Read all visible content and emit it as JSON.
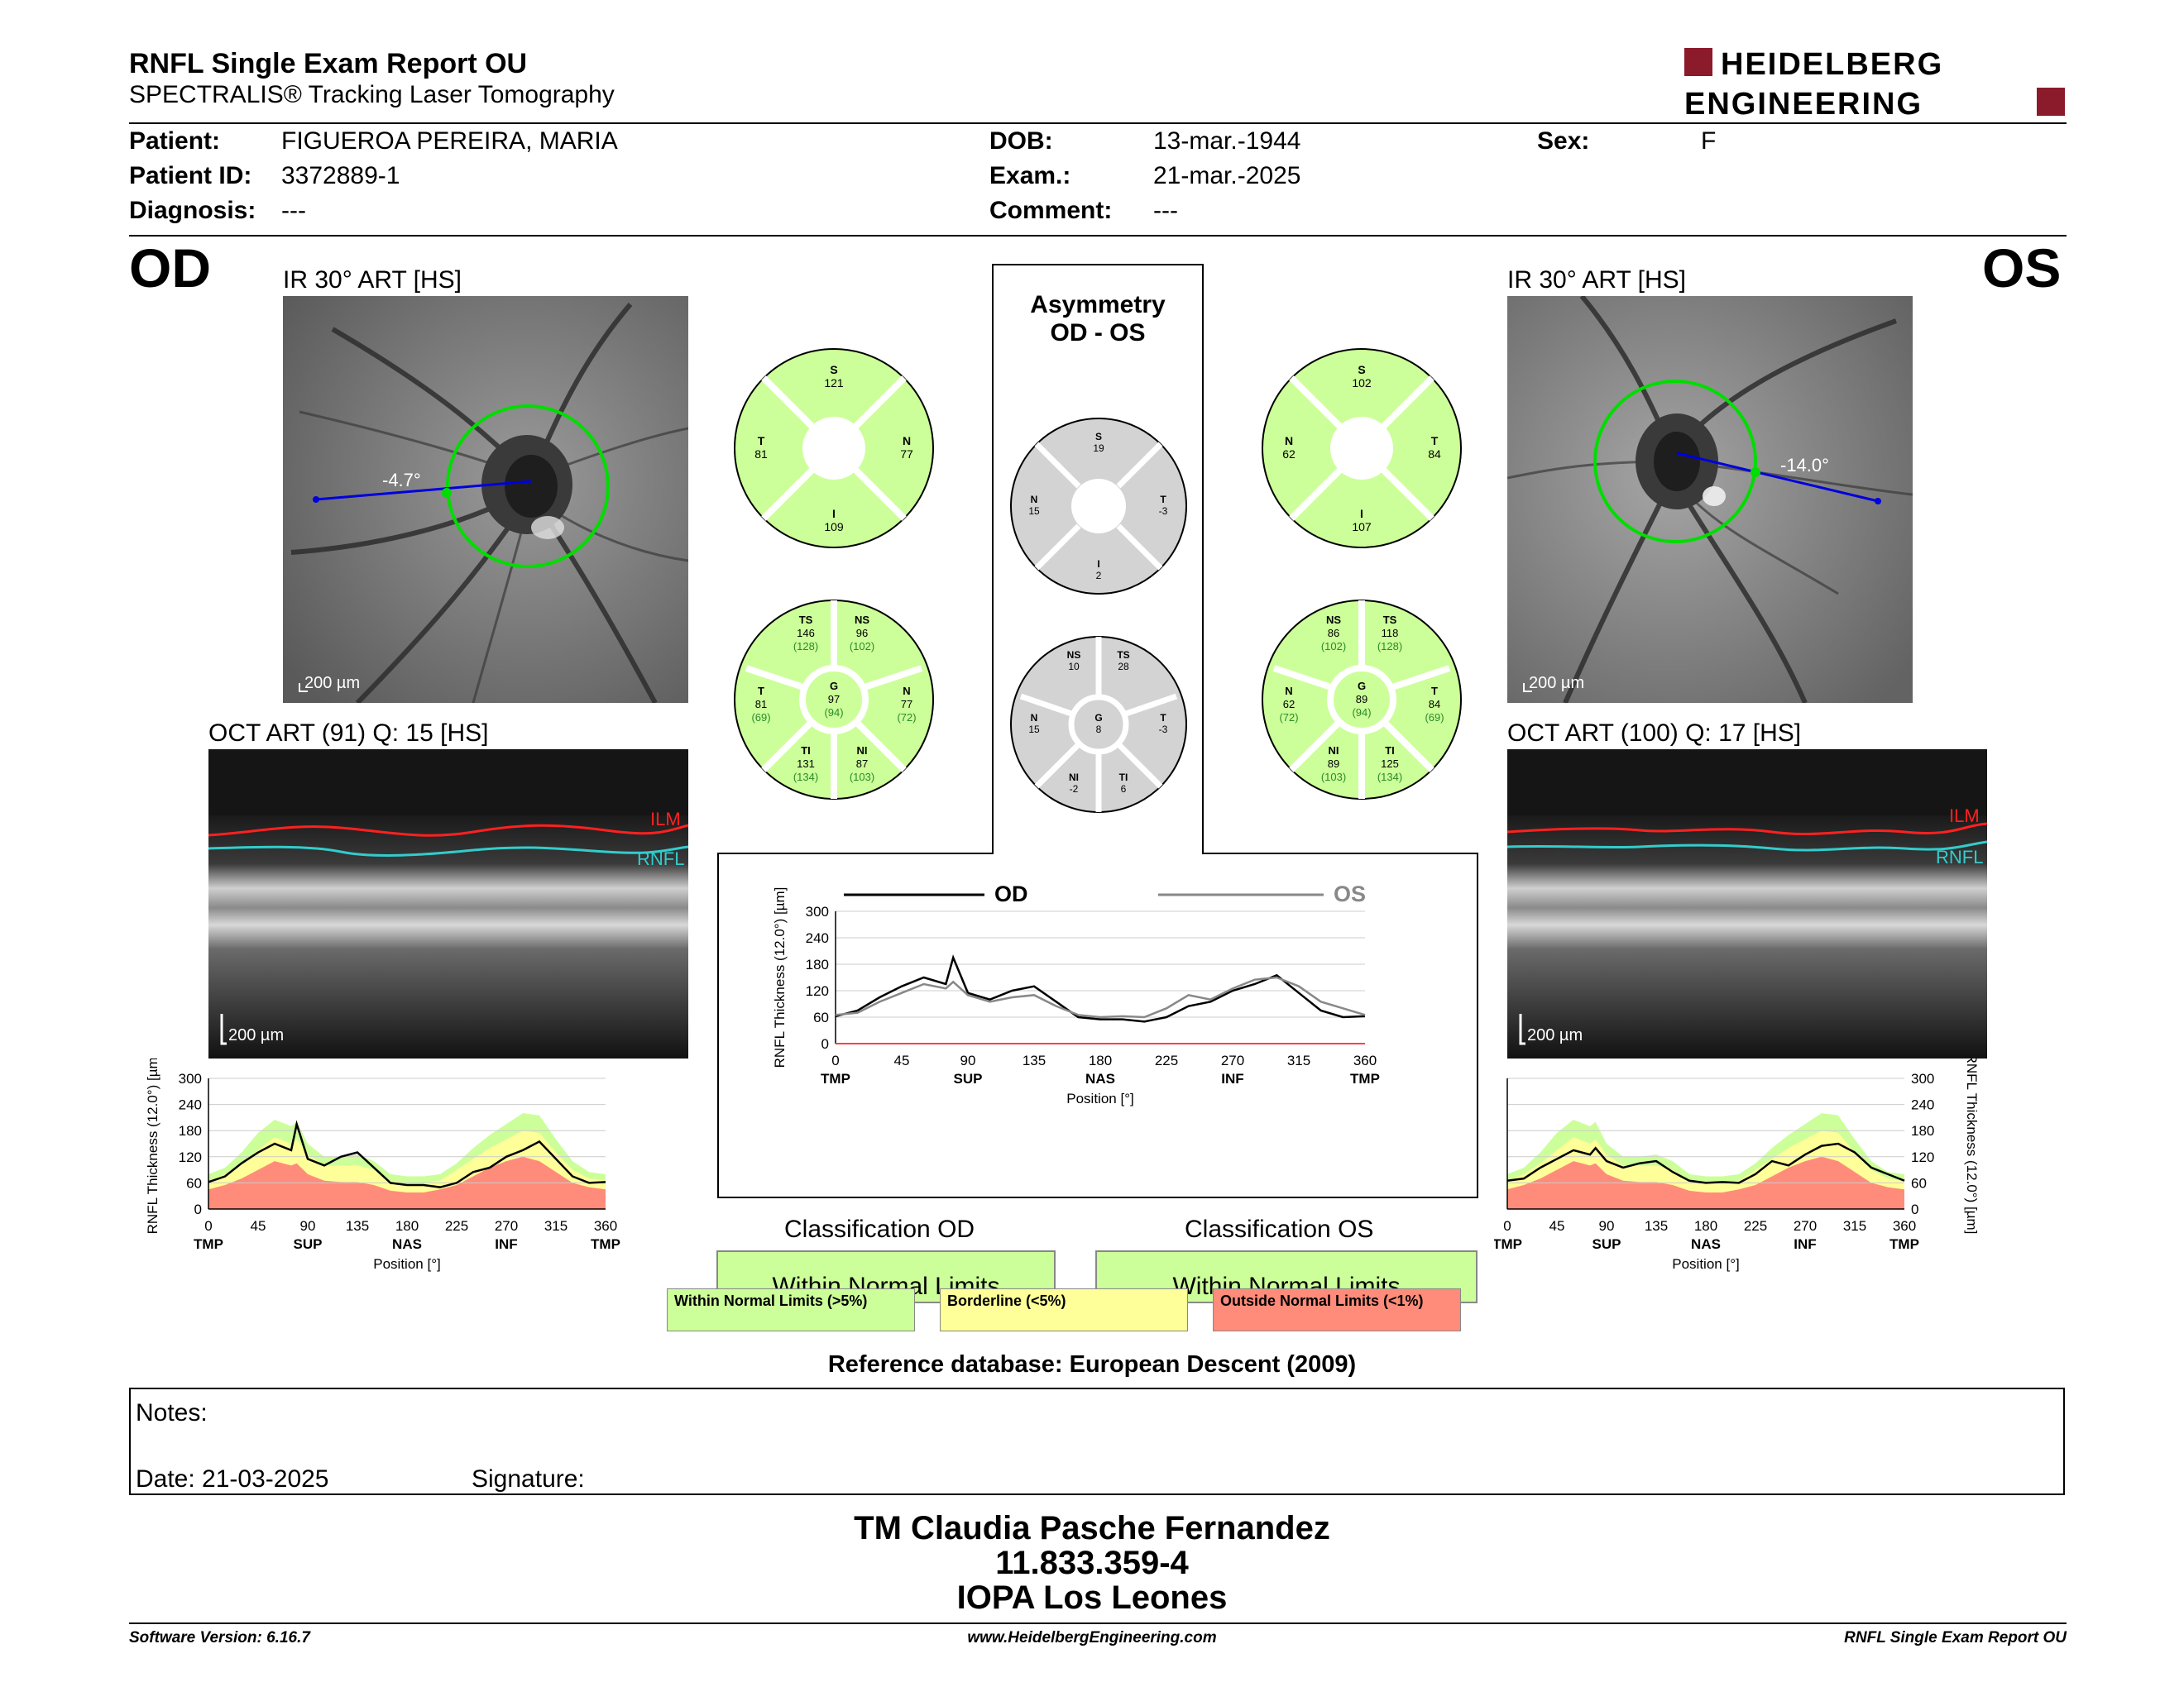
{
  "header": {
    "title": "RNFL Single Exam Report OU",
    "subtitle": "SPECTRALIS® Tracking Laser Tomography",
    "logo_line1": "HEIDELBERG",
    "logo_line2": "ENGINEERING"
  },
  "patient": {
    "name_label": "Patient:",
    "name": "FIGUEROA PEREIRA, MARIA",
    "id_label": "Patient ID:",
    "id": "3372889-1",
    "diagnosis_label": "Diagnosis:",
    "diagnosis": "---",
    "dob_label": "DOB:",
    "dob": "13-mar.-1944",
    "exam_label": "Exam.:",
    "exam": "21-mar.-2025",
    "comment_label": "Comment:",
    "comment": "---",
    "sex_label": "Sex:",
    "sex": "F"
  },
  "od": {
    "eye": "OD",
    "ir_label": "IR 30° ART [HS]",
    "angle": "-4.7°",
    "ir_scale": "200 µm",
    "oct_label": "OCT ART (91) Q: 15 [HS]",
    "oct_scale": "200 µm",
    "ilm": "ILM",
    "rnfl": "RNFL",
    "sectors6": {
      "S": {
        "v": "121"
      },
      "T": {
        "v": "81"
      },
      "N": {
        "v": "77"
      },
      "I": {
        "v": "109"
      }
    },
    "sectors8": {
      "TS": {
        "v": "146",
        "r": "(128)"
      },
      "NS": {
        "v": "96",
        "r": "(102)"
      },
      "T": {
        "v": "81",
        "r": "(69)"
      },
      "G": {
        "v": "97",
        "r": "(94)"
      },
      "N": {
        "v": "77",
        "r": "(72)"
      },
      "TI": {
        "v": "131",
        "r": "(134)"
      },
      "NI": {
        "v": "87",
        "r": "(103)"
      }
    },
    "classification_title": "Classification OD",
    "classification": "Within Normal Limits"
  },
  "os": {
    "eye": "OS",
    "ir_label": "IR 30° ART [HS]",
    "angle": "-14.0°",
    "ir_scale": "200 µm",
    "oct_label": "OCT ART (100) Q: 17 [HS]",
    "oct_scale": "200 µm",
    "ilm": "ILM",
    "rnfl": "RNFL",
    "sectors6": {
      "S": {
        "v": "102"
      },
      "N": {
        "v": "62"
      },
      "T": {
        "v": "84"
      },
      "I": {
        "v": "107"
      }
    },
    "sectors8": {
      "NS": {
        "v": "86",
        "r": "(102)"
      },
      "TS": {
        "v": "118",
        "r": "(128)"
      },
      "N": {
        "v": "62",
        "r": "(72)"
      },
      "G": {
        "v": "89",
        "r": "(94)"
      },
      "T": {
        "v": "84",
        "r": "(69)"
      },
      "NI": {
        "v": "89",
        "r": "(103)"
      },
      "TI": {
        "v": "125",
        "r": "(134)"
      }
    },
    "classification_title": "Classification OS",
    "classification": "Within Normal Limits"
  },
  "asymmetry": {
    "title_line1": "Asymmetry",
    "title_line2": "OD - OS",
    "sectors6": {
      "S": "19",
      "N": "15",
      "T": "-3",
      "I": "2"
    },
    "sectors8": {
      "NS": "10",
      "TS": "28",
      "N": "15",
      "G": "8",
      "T": "-3",
      "NI": "-2",
      "TI": "6"
    },
    "legend_od": "OD",
    "legend_os": "OS"
  },
  "sector_labels": {
    "S": "S",
    "T": "T",
    "N": "N",
    "I": "I",
    "TS": "TS",
    "NS": "NS",
    "G": "G",
    "TI": "TI",
    "NI": "NI"
  },
  "legend": {
    "within": "Within Normal Limits (>5%)",
    "borderline": "Borderline (<5%)",
    "outside": "Outside Normal Limits (<1%)"
  },
  "reference_db": "Reference database: European Descent (2009)",
  "notes": {
    "label": "Notes:",
    "date": "Date: 21-03-2025",
    "signature": "Signature:"
  },
  "signer": {
    "name": "TM Claudia Pasche Fernandez",
    "id": "11.833.359-4",
    "org": "IOPA Los Leones"
  },
  "footer": {
    "version": "Software Version: 6.16.7",
    "url": "www.HeidelbergEngineering.com",
    "report": "RNFL Single Exam Report OU"
  },
  "colors": {
    "normal": "#ccff99",
    "borderline": "#ffff99",
    "outside": "#ff8c7a",
    "grey": "#d3d3d3",
    "ilm": "#ff2020",
    "rnfl": "#33cccc"
  },
  "chart_data": [
    {
      "type": "line",
      "name": "od-profile",
      "x": [
        0,
        15,
        30,
        45,
        60,
        75,
        80,
        90,
        105,
        120,
        135,
        150,
        165,
        180,
        195,
        210,
        225,
        240,
        255,
        270,
        285,
        300,
        315,
        330,
        345,
        360
      ],
      "series": [
        {
          "name": "OD",
          "values": [
            62,
            75,
            105,
            130,
            150,
            135,
            195,
            115,
            100,
            120,
            130,
            95,
            60,
            55,
            55,
            50,
            60,
            85,
            95,
            120,
            135,
            155,
            115,
            75,
            60,
            62
          ]
        }
      ],
      "band_normal_top": [
        80,
        95,
        130,
        175,
        205,
        190,
        200,
        150,
        120,
        120,
        125,
        110,
        80,
        75,
        75,
        80,
        105,
        140,
        170,
        195,
        220,
        215,
        160,
        110,
        85,
        80
      ],
      "band_borderline_top": [
        65,
        80,
        105,
        135,
        165,
        150,
        160,
        125,
        100,
        100,
        100,
        90,
        65,
        60,
        60,
        65,
        90,
        115,
        140,
        160,
        180,
        175,
        130,
        90,
        70,
        65
      ],
      "band_outside_top": [
        45,
        55,
        70,
        90,
        110,
        100,
        105,
        80,
        65,
        62,
        62,
        55,
        42,
        38,
        38,
        45,
        55,
        75,
        95,
        110,
        120,
        110,
        85,
        60,
        50,
        45
      ],
      "ylim": [
        0,
        300
      ],
      "yticks": [
        0,
        60,
        120,
        180,
        240,
        300
      ],
      "xticks": [
        0,
        45,
        90,
        135,
        180,
        225,
        270,
        315,
        360
      ],
      "xcats": [
        "TMP",
        "SUP",
        "NAS",
        "INF",
        "TMP"
      ],
      "ylabel": "RNFL Thickness (12.0°) [µm]",
      "xlabel": "Position [°]"
    },
    {
      "type": "line",
      "name": "asymmetry-profile",
      "x": [
        0,
        15,
        30,
        45,
        60,
        75,
        80,
        90,
        105,
        120,
        135,
        150,
        165,
        180,
        195,
        210,
        225,
        240,
        255,
        270,
        285,
        300,
        315,
        330,
        345,
        360
      ],
      "series": [
        {
          "name": "OD",
          "values": [
            62,
            75,
            105,
            130,
            150,
            135,
            195,
            115,
            100,
            120,
            130,
            95,
            60,
            55,
            55,
            50,
            60,
            85,
            95,
            120,
            135,
            155,
            115,
            75,
            60,
            62
          ]
        },
        {
          "name": "OS",
          "values": [
            65,
            70,
            95,
            115,
            135,
            125,
            140,
            110,
            95,
            105,
            110,
            85,
            65,
            60,
            62,
            60,
            80,
            110,
            100,
            125,
            145,
            150,
            130,
            95,
            80,
            65
          ]
        }
      ],
      "ylim": [
        0,
        300
      ],
      "yticks": [
        0,
        60,
        120,
        180,
        240,
        300
      ],
      "xticks": [
        0,
        45,
        90,
        135,
        180,
        225,
        270,
        315,
        360
      ],
      "xcats": [
        "TMP",
        "SUP",
        "NAS",
        "INF",
        "TMP"
      ],
      "ylabel": "RNFL Thickness (12.0°) [µm]",
      "xlabel": "Position [°]"
    },
    {
      "type": "line",
      "name": "os-profile",
      "x": [
        0,
        15,
        30,
        45,
        60,
        75,
        80,
        90,
        105,
        120,
        135,
        150,
        165,
        180,
        195,
        210,
        225,
        240,
        255,
        270,
        285,
        300,
        315,
        330,
        345,
        360
      ],
      "series": [
        {
          "name": "OS",
          "values": [
            65,
            70,
            95,
            115,
            135,
            125,
            140,
            110,
            95,
            105,
            110,
            85,
            65,
            60,
            62,
            60,
            80,
            110,
            100,
            125,
            145,
            150,
            130,
            95,
            80,
            65
          ]
        }
      ],
      "band_normal_top": [
        80,
        95,
        130,
        175,
        205,
        190,
        200,
        150,
        120,
        120,
        125,
        110,
        80,
        75,
        75,
        80,
        105,
        140,
        170,
        195,
        220,
        215,
        160,
        110,
        85,
        80
      ],
      "band_borderline_top": [
        65,
        80,
        105,
        135,
        165,
        150,
        160,
        125,
        100,
        100,
        100,
        90,
        65,
        60,
        60,
        65,
        90,
        115,
        140,
        160,
        180,
        175,
        130,
        90,
        70,
        65
      ],
      "band_outside_top": [
        45,
        55,
        70,
        90,
        110,
        100,
        105,
        80,
        65,
        62,
        62,
        55,
        42,
        38,
        38,
        45,
        55,
        75,
        95,
        110,
        120,
        110,
        85,
        60,
        50,
        45
      ],
      "ylim": [
        0,
        300
      ],
      "yticks": [
        0,
        60,
        120,
        180,
        240,
        300
      ],
      "xticks": [
        0,
        45,
        90,
        135,
        180,
        225,
        270,
        315,
        360
      ],
      "xcats": [
        "TMP",
        "SUP",
        "NAS",
        "INF",
        "TMP"
      ],
      "ylabel": "RNFL Thickness (12.0°) [µm]",
      "xlabel": "Position [°]"
    }
  ]
}
